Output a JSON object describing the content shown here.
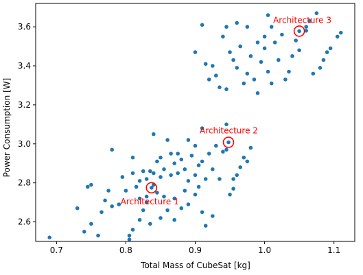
{
  "chart_data": {
    "type": "scatter",
    "xlabel": "Total Mass of CubeSat [kg]",
    "ylabel": "Power Consumption [W]",
    "xlim": [
      0.67,
      1.13
    ],
    "ylim": [
      2.5,
      3.72
    ],
    "xticks": [
      0.7,
      0.8,
      0.9,
      1.0,
      1.1
    ],
    "yticks": [
      2.6,
      2.8,
      3.0,
      3.2,
      3.4,
      3.6
    ],
    "xtick_labels": [
      "0.7",
      "0.8",
      "0.9",
      "1.0",
      "1.1"
    ],
    "ytick_labels": [
      "2.6",
      "2.8",
      "3.0",
      "3.2",
      "3.4",
      "3.6"
    ],
    "grid": false,
    "point_color": "#1f77b4",
    "highlight_color": "#ff0000",
    "points": [
      [
        0.69,
        2.52
      ],
      [
        0.73,
        2.67
      ],
      [
        0.74,
        2.55
      ],
      [
        0.745,
        2.78
      ],
      [
        0.75,
        2.79
      ],
      [
        0.75,
        2.59
      ],
      [
        0.76,
        2.53
      ],
      [
        0.765,
        2.65
      ],
      [
        0.77,
        2.71
      ],
      [
        0.775,
        2.76
      ],
      [
        0.78,
        2.68
      ],
      [
        0.78,
        2.97
      ],
      [
        0.79,
        2.69
      ],
      [
        0.795,
        2.83
      ],
      [
        0.8,
        2.76
      ],
      [
        0.805,
        2.51
      ],
      [
        0.805,
        2.53
      ],
      [
        0.81,
        2.56
      ],
      [
        0.81,
        2.85
      ],
      [
        0.81,
        2.93
      ],
      [
        0.815,
        2.78
      ],
      [
        0.82,
        2.61
      ],
      [
        0.82,
        2.72
      ],
      [
        0.82,
        2.81
      ],
      [
        0.825,
        2.86
      ],
      [
        0.825,
        2.66
      ],
      [
        0.83,
        2.7
      ],
      [
        0.83,
        2.73
      ],
      [
        0.83,
        2.82
      ],
      [
        0.835,
        2.86
      ],
      [
        0.835,
        2.59
      ],
      [
        0.84,
        2.79
      ],
      [
        0.84,
        2.85
      ],
      [
        0.84,
        3.05
      ],
      [
        0.845,
        2.75
      ],
      [
        0.845,
        2.91
      ],
      [
        0.85,
        2.83
      ],
      [
        0.85,
        2.62
      ],
      [
        0.85,
        2.93
      ],
      [
        0.855,
        2.87
      ],
      [
        0.855,
        2.73
      ],
      [
        0.86,
        2.66
      ],
      [
        0.86,
        3.02
      ],
      [
        0.865,
        2.95
      ],
      [
        0.865,
        2.84
      ],
      [
        0.87,
        2.72
      ],
      [
        0.87,
        2.9
      ],
      [
        0.87,
        2.61
      ],
      [
        0.875,
        2.95
      ],
      [
        0.875,
        2.85
      ],
      [
        0.88,
        2.92
      ],
      [
        0.88,
        2.67
      ],
      [
        0.885,
        2.76
      ],
      [
        0.885,
        2.87
      ],
      [
        0.89,
        2.81
      ],
      [
        0.89,
        3.02
      ],
      [
        0.89,
        2.69
      ],
      [
        0.895,
        2.94
      ],
      [
        0.9,
        2.84
      ],
      [
        0.9,
        2.74
      ],
      [
        0.9,
        2.99
      ],
      [
        0.905,
        2.89
      ],
      [
        0.905,
        2.78
      ],
      [
        0.91,
        2.65
      ],
      [
        0.91,
        2.91
      ],
      [
        0.91,
        3.08
      ],
      [
        0.915,
        2.82
      ],
      [
        0.915,
        2.58
      ],
      [
        0.92,
        2.95
      ],
      [
        0.925,
        2.87
      ],
      [
        0.925,
        2.63
      ],
      [
        0.93,
        2.99
      ],
      [
        0.935,
        2.82
      ],
      [
        0.94,
        2.96
      ],
      [
        0.945,
        3.1
      ],
      [
        0.945,
        2.97
      ],
      [
        0.95,
        2.74
      ],
      [
        0.955,
        2.82
      ],
      [
        0.955,
        2.77
      ],
      [
        0.96,
        2.84
      ],
      [
        0.965,
        2.88
      ],
      [
        0.97,
        2.93
      ],
      [
        0.975,
        2.91
      ],
      [
        0.98,
        2.98
      ],
      [
        0.9,
        3.47
      ],
      [
        0.91,
        3.61
      ],
      [
        0.915,
        3.41
      ],
      [
        0.92,
        3.33
      ],
      [
        0.925,
        3.4
      ],
      [
        0.93,
        3.35
      ],
      [
        0.935,
        3.29
      ],
      [
        0.94,
        3.55
      ],
      [
        0.945,
        3.6
      ],
      [
        0.945,
        3.28
      ],
      [
        0.95,
        3.47
      ],
      [
        0.955,
        3.43
      ],
      [
        0.96,
        3.62
      ],
      [
        0.96,
        3.39
      ],
      [
        0.965,
        3.5
      ],
      [
        0.97,
        3.31
      ],
      [
        0.975,
        3.36
      ],
      [
        0.975,
        3.6
      ],
      [
        0.98,
        3.45
      ],
      [
        0.985,
        3.33
      ],
      [
        0.99,
        3.52
      ],
      [
        0.99,
        3.26
      ],
      [
        0.995,
        3.42
      ],
      [
        1.0,
        3.55
      ],
      [
        1.0,
        3.49
      ],
      [
        1.005,
        3.66
      ],
      [
        1.005,
        3.37
      ],
      [
        1.01,
        3.31
      ],
      [
        1.01,
        3.6
      ],
      [
        1.015,
        3.52
      ],
      [
        1.02,
        3.43
      ],
      [
        1.025,
        3.56
      ],
      [
        1.03,
        3.33
      ],
      [
        1.035,
        3.37
      ],
      [
        1.04,
        3.45
      ],
      [
        1.045,
        3.53
      ],
      [
        1.05,
        3.48
      ],
      [
        1.06,
        3.58
      ],
      [
        1.06,
        3.6
      ],
      [
        1.07,
        3.36
      ],
      [
        1.08,
        3.39
      ],
      [
        1.085,
        3.43
      ],
      [
        1.09,
        3.47
      ],
      [
        1.095,
        3.49
      ],
      [
        1.105,
        3.55
      ],
      [
        1.11,
        3.57
      ],
      [
        1.065,
        3.63
      ],
      [
        1.075,
        3.67
      ]
    ],
    "annotations": [
      {
        "label": "Architecture 1",
        "x": 0.837,
        "y": 2.775
      },
      {
        "label": "Architecture 2",
        "x": 0.948,
        "y": 3.008
      },
      {
        "label": "Architecture 3",
        "x": 1.05,
        "y": 3.578
      }
    ]
  }
}
